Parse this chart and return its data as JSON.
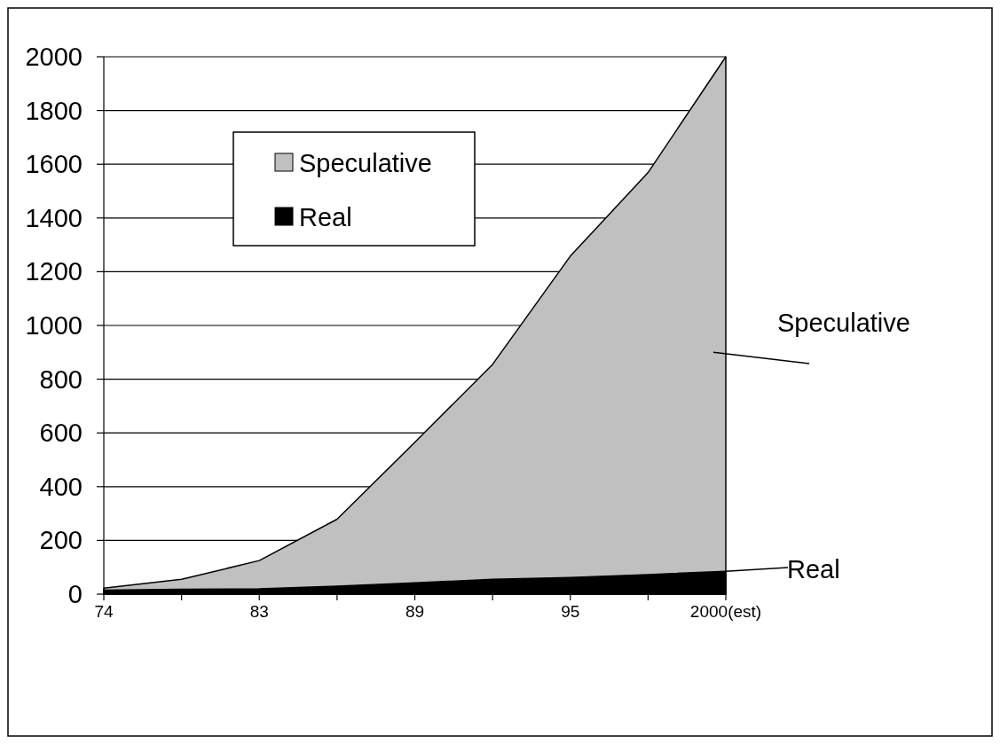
{
  "chart_data": {
    "type": "area",
    "categories": [
      "74",
      null,
      "83",
      null,
      "89",
      null,
      "95",
      null,
      "2000(est)"
    ],
    "series": [
      {
        "name": "Speculative",
        "color": "#c0c0c0",
        "values": [
          22,
          55,
          125,
          279,
          565,
          855,
          1258,
          1569,
          2000
        ]
      },
      {
        "name": "Real",
        "color": "#000000",
        "values": [
          15,
          18,
          20,
          30,
          42,
          55,
          62,
          73,
          85
        ]
      }
    ],
    "ylim": [
      0,
      2000
    ],
    "yticks": [
      0,
      200,
      400,
      600,
      800,
      1000,
      1200,
      1400,
      1600,
      1800,
      2000
    ],
    "grid": "y",
    "legend": "top left",
    "annotations": [
      {
        "text": "Speculative",
        "x": "2000(est)",
        "y": 900
      },
      {
        "text": "Real",
        "x": "2000(est)",
        "y": 85
      }
    ]
  }
}
